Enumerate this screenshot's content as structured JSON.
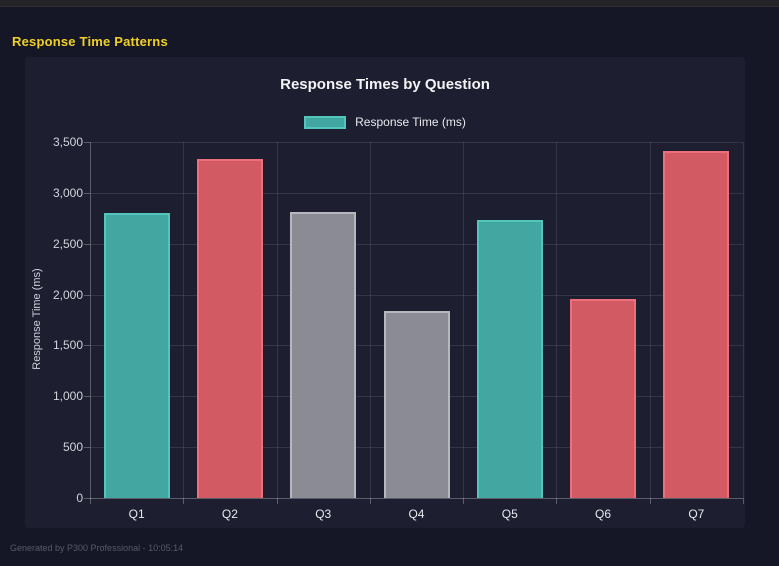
{
  "header": {
    "title": "Response Time Patterns",
    "title_color": "#f0d028"
  },
  "panel": {
    "chart_title": "Response Times by Question",
    "legend_label": "Response Time (ms)",
    "y_axis_title": "Response Time (ms)"
  },
  "footer": {
    "note": "Generated by P300 Professional - 10:05:14"
  },
  "colors": {
    "page_background": "#161726",
    "panel_background": "#1d1f31",
    "teal_fill": "#42a6a1",
    "teal_border": "#52c5bd",
    "red_fill": "#d25a63",
    "red_border": "#ef6e7c",
    "gray_fill": "#8b8c93",
    "gray_border": "#b7b8bf"
  },
  "chart_data": {
    "type": "bar",
    "title": "Response Times by Question",
    "xlabel": "",
    "ylabel": "Response Time (ms)",
    "categories": [
      "Q1",
      "Q2",
      "Q3",
      "Q4",
      "Q5",
      "Q6",
      "Q7"
    ],
    "values": [
      2800,
      3330,
      2810,
      1840,
      2730,
      1960,
      3410
    ],
    "bar_colors": [
      "teal",
      "red",
      "gray",
      "gray",
      "teal",
      "red",
      "red"
    ],
    "palette": {
      "teal": {
        "fill": "#42a6a1",
        "border": "#52c5bd"
      },
      "red": {
        "fill": "#d25a63",
        "border": "#ef6e7c"
      },
      "gray": {
        "fill": "#8b8c93",
        "border": "#b7b8bf"
      }
    },
    "ylim": [
      0,
      3500
    ],
    "ytick_step": 500,
    "ytick_labels": [
      "0",
      "500",
      "1,000",
      "1,500",
      "2,000",
      "2,500",
      "3,000",
      "3,500"
    ],
    "grid": true,
    "legend": [
      {
        "label": "Response Time (ms)",
        "color": "teal"
      }
    ],
    "legend_position": "top"
  }
}
